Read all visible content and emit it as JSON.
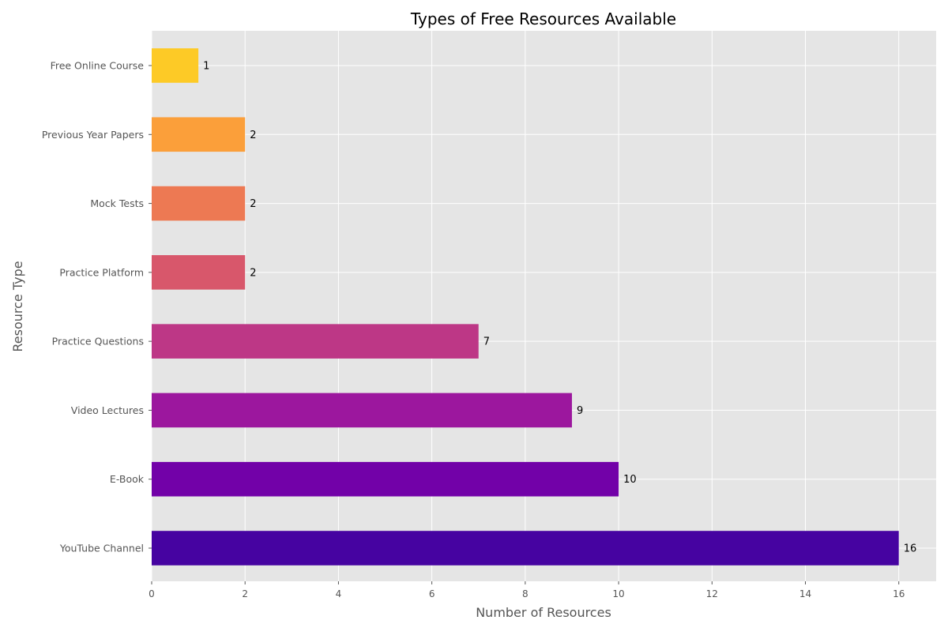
{
  "chart_data": {
    "type": "bar",
    "orientation": "horizontal",
    "title": "Types of Free Resources Available",
    "xlabel": "Number of Resources",
    "ylabel": "Resource Type",
    "xlim": [
      0,
      16.8
    ],
    "x_ticks": [
      0,
      2,
      4,
      6,
      8,
      10,
      12,
      14,
      16
    ],
    "categories": [
      "YouTube Channel",
      "E-Book",
      "Video Lectures",
      "Practice Questions",
      "Practice Platform",
      "Mock Tests",
      "Previous Year Papers",
      "Free Online Course"
    ],
    "values": [
      16,
      10,
      9,
      7,
      2,
      2,
      2,
      1
    ],
    "bar_colors": [
      "#4603a1",
      "#7201a8",
      "#9c179e",
      "#bd3786",
      "#d8576b",
      "#ed7953",
      "#fb9f3a",
      "#fdca26"
    ],
    "grid": true,
    "legend": "none",
    "plot_background": "#e5e5e5"
  }
}
